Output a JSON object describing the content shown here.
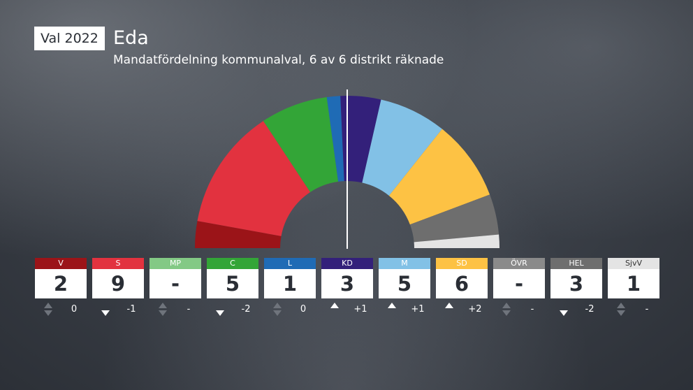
{
  "header": {
    "badge": "Val 2022",
    "title": "Eda",
    "subtitle": "Mandatfördelning kommunalval, 6 av 6 distrikt räknade"
  },
  "chart_data": {
    "type": "parliament",
    "title": "Eda",
    "subtitle": "Mandatfördelning kommunalval, 6 av 6 distrikt räknade",
    "total_seats": 35,
    "majority_line": true,
    "arc_segments": [
      {
        "party": "V",
        "seats": 2,
        "color": "#9b1418"
      },
      {
        "party": "S",
        "seats": 9,
        "color": "#e2323f"
      },
      {
        "party": "C",
        "seats": 5,
        "color": "#33a537"
      },
      {
        "party": "L",
        "seats": 1,
        "color": "#1f6bb5"
      },
      {
        "party": "KD",
        "seats": 3,
        "color": "#33207a"
      },
      {
        "party": "M",
        "seats": 5,
        "color": "#82c1e6"
      },
      {
        "party": "SD",
        "seats": 6,
        "color": "#fdc244"
      },
      {
        "party": "HEL",
        "seats": 3,
        "color": "#6e6e6e"
      },
      {
        "party": "SjvV",
        "seats": 1,
        "color": "#e4e4e4"
      }
    ],
    "parties": [
      {
        "name": "V",
        "seats": "2",
        "change": "0",
        "dir": "none",
        "color": "#9b1418",
        "text_color": "#ffffff"
      },
      {
        "name": "S",
        "seats": "9",
        "change": "-1",
        "dir": "down",
        "color": "#e2323f",
        "text_color": "#ffffff"
      },
      {
        "name": "MP",
        "seats": "-",
        "change": "-",
        "dir": "none",
        "color": "#83c985",
        "text_color": "#ffffff"
      },
      {
        "name": "C",
        "seats": "5",
        "change": "-2",
        "dir": "down",
        "color": "#33a537",
        "text_color": "#ffffff"
      },
      {
        "name": "L",
        "seats": "1",
        "change": "0",
        "dir": "none",
        "color": "#1f6bb5",
        "text_color": "#ffffff"
      },
      {
        "name": "KD",
        "seats": "3",
        "change": "+1",
        "dir": "up",
        "color": "#33207a",
        "text_color": "#ffffff"
      },
      {
        "name": "M",
        "seats": "5",
        "change": "+1",
        "dir": "up",
        "color": "#82c1e6",
        "text_color": "#ffffff"
      },
      {
        "name": "SD",
        "seats": "6",
        "change": "+2",
        "dir": "up",
        "color": "#fdc244",
        "text_color": "#ffffff"
      },
      {
        "name": "ÖVR",
        "seats": "-",
        "change": "-",
        "dir": "none",
        "color": "#8a8a8a",
        "text_color": "#ffffff"
      },
      {
        "name": "HEL",
        "seats": "3",
        "change": "-2",
        "dir": "down",
        "color": "#6e6e6e",
        "text_color": "#ffffff"
      },
      {
        "name": "SjvV",
        "seats": "1",
        "change": "-",
        "dir": "none",
        "color": "#e4e4e4",
        "text_color": "#333333"
      }
    ]
  }
}
